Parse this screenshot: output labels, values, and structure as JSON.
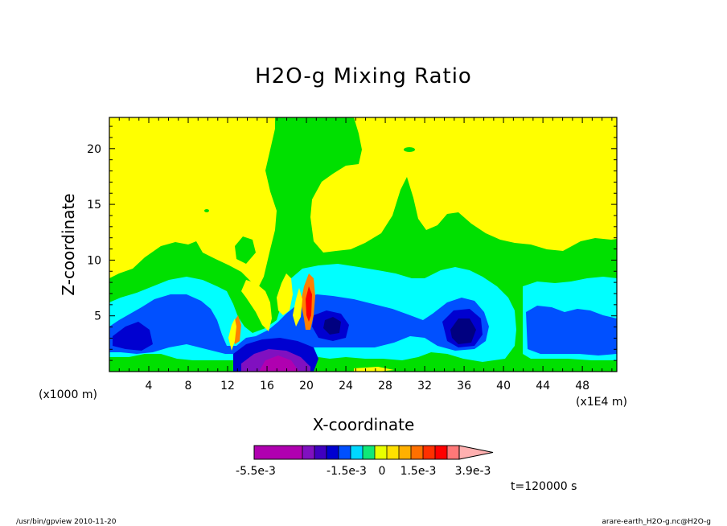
{
  "chart_data": {
    "type": "heatmap",
    "title": "H2O-g Mixing Ratio",
    "xlabel": "X-coordinate",
    "ylabel": "Z-coordinate",
    "x_unit_left": "(x1000 m)",
    "x_unit_right": "(x1E4 m)",
    "xlim": [
      0,
      51.5
    ],
    "ylim": [
      0,
      22.8
    ],
    "x_ticks": [
      "4",
      "8",
      "12",
      "16",
      "20",
      "24",
      "28",
      "32",
      "36",
      "40",
      "44",
      "48"
    ],
    "y_ticks": [
      "5",
      "10",
      "15",
      "20"
    ],
    "colorbar": {
      "labels": [
        "-5.5e-3",
        "-1.5e-3",
        "0",
        "1.5e-3",
        "3.9e-3"
      ],
      "colors": [
        "#b000b0",
        "#b000b0",
        "#b000b0",
        "#b000b0",
        "#8010c0",
        "#4000c0",
        "#0000d0",
        "#0050ff",
        "#00d8ff",
        "#10e878",
        "#e8ff00",
        "#ffe000",
        "#ffb000",
        "#ff7000",
        "#ff3000",
        "#ff0000",
        "#ff7878",
        "#ffb0b0"
      ]
    },
    "colors": {
      "upper": "#ffff00",
      "green": "#00e000",
      "cyan": "#00ffff",
      "blue": "#0050ff",
      "deepblue": "#0000d0",
      "navy": "#000080",
      "purple": "#8010c0",
      "magenta": "#b000b0",
      "orange": "#ff8000",
      "red": "#ff0000"
    }
  },
  "annotations": {
    "time": "t=120000 s",
    "footer_left": "/usr/bin/gpview  2010-11-20",
    "footer_right": "arare-earth_H2O-g.nc@H2O-g"
  }
}
